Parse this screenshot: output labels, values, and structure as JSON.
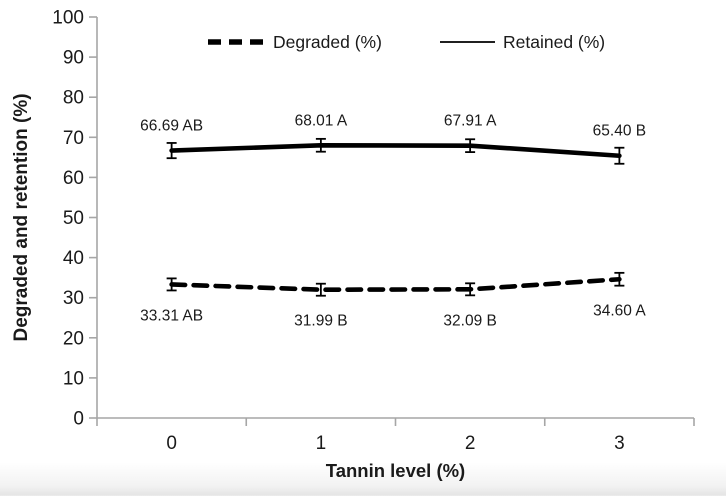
{
  "chart_data": {
    "type": "line",
    "title": "",
    "xlabel": "Tannin level (%)",
    "ylabel": "Degraded and retention (%)",
    "categories": [
      "0",
      "1",
      "2",
      "3"
    ],
    "y_ticks": [
      0,
      10,
      20,
      30,
      40,
      50,
      60,
      70,
      80,
      90,
      100
    ],
    "ylim": [
      0,
      100
    ],
    "grid": "off",
    "legend_position": "top-center",
    "legend": [
      {
        "label": "Degraded (%)",
        "line_style": "dashed"
      },
      {
        "label": "Retained (%)",
        "line_style": "solid"
      }
    ],
    "series": [
      {
        "name": "Degraded (%)",
        "line_style": "dashed",
        "values": [
          33.31,
          31.99,
          32.09,
          34.6
        ],
        "error": [
          1.5,
          1.5,
          1.5,
          1.6
        ],
        "point_labels": [
          "33.31 AB",
          "31.99 B",
          "32.09 B",
          "34.60 A"
        ],
        "label_side": "below"
      },
      {
        "name": "Retained (%)",
        "line_style": "solid",
        "values": [
          66.69,
          68.01,
          67.91,
          65.4
        ],
        "error": [
          1.9,
          1.6,
          1.6,
          2.0
        ],
        "point_labels": [
          "66.69 AB",
          "68.01 A",
          "67.91 A",
          "65.40 B"
        ],
        "label_side": "above"
      }
    ],
    "colors": {
      "series": "#000000",
      "axis_line": "#a6a6a6",
      "tick_text": "#1a1a1a",
      "label_text": "#1a1a1a",
      "background": "#ffffff"
    }
  }
}
